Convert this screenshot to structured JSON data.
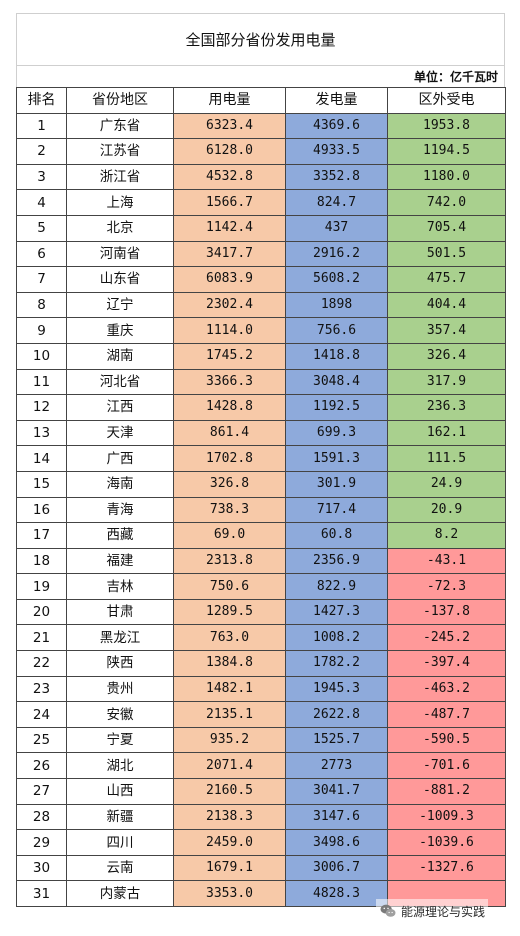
{
  "title": "全国部分省份发用电量",
  "unit": "单位：亿千瓦时",
  "headers": [
    "排名",
    "省份地区",
    "用电量",
    "发电量",
    "区外受电"
  ],
  "rows": [
    [
      "1",
      "广东省",
      "6323.4",
      "4369.6",
      "1953.8"
    ],
    [
      "2",
      "江苏省",
      "6128.0",
      "4933.5",
      "1194.5"
    ],
    [
      "3",
      "浙江省",
      "4532.8",
      "3352.8",
      "1180.0"
    ],
    [
      "4",
      "上海",
      "1566.7",
      "824.7",
      "742.0"
    ],
    [
      "5",
      "北京",
      "1142.4",
      "437",
      "705.4"
    ],
    [
      "6",
      "河南省",
      "3417.7",
      "2916.2",
      "501.5"
    ],
    [
      "7",
      "山东省",
      "6083.9",
      "5608.2",
      "475.7"
    ],
    [
      "8",
      "辽宁",
      "2302.4",
      "1898",
      "404.4"
    ],
    [
      "9",
      "重庆",
      "1114.0",
      "756.6",
      "357.4"
    ],
    [
      "10",
      "湖南",
      "1745.2",
      "1418.8",
      "326.4"
    ],
    [
      "11",
      "河北省",
      "3366.3",
      "3048.4",
      "317.9"
    ],
    [
      "12",
      "江西",
      "1428.8",
      "1192.5",
      "236.3"
    ],
    [
      "13",
      "天津",
      "861.4",
      "699.3",
      "162.1"
    ],
    [
      "14",
      "广西",
      "1702.8",
      "1591.3",
      "111.5"
    ],
    [
      "15",
      "海南",
      "326.8",
      "301.9",
      "24.9"
    ],
    [
      "16",
      "青海",
      "738.3",
      "717.4",
      "20.9"
    ],
    [
      "17",
      "西藏",
      "69.0",
      "60.8",
      "8.2"
    ],
    [
      "18",
      "福建",
      "2313.8",
      "2356.9",
      "-43.1"
    ],
    [
      "19",
      "吉林",
      "750.6",
      "822.9",
      "-72.3"
    ],
    [
      "20",
      "甘肃",
      "1289.5",
      "1427.3",
      "-137.8"
    ],
    [
      "21",
      "黑龙江",
      "763.0",
      "1008.2",
      "-245.2"
    ],
    [
      "22",
      "陕西",
      "1384.8",
      "1782.2",
      "-397.4"
    ],
    [
      "23",
      "贵州",
      "1482.1",
      "1945.3",
      "-463.2"
    ],
    [
      "24",
      "安徽",
      "2135.1",
      "2622.8",
      "-487.7"
    ],
    [
      "25",
      "宁夏",
      "935.2",
      "1525.7",
      "-590.5"
    ],
    [
      "26",
      "湖北",
      "2071.4",
      "2773",
      "-701.6"
    ],
    [
      "27",
      "山西",
      "2160.5",
      "3041.7",
      "-881.2"
    ],
    [
      "28",
      "新疆",
      "2138.3",
      "3147.6",
      "-1009.3"
    ],
    [
      "29",
      "四川",
      "2459.0",
      "3498.6",
      "-1039.6"
    ],
    [
      "30",
      "云南",
      "1679.1",
      "3006.7",
      "-1327.6"
    ],
    [
      "31",
      "内蒙古",
      "3353.0",
      "4828.3",
      ""
    ]
  ],
  "colors": {
    "consumption": "#f7c9a8",
    "generation": "#8eaadb",
    "inflow_positive": "#a9d08e",
    "inflow_negative": "#ff9999"
  },
  "watermark": {
    "icon": "wechat-icon",
    "text": "能源理论与实践"
  }
}
